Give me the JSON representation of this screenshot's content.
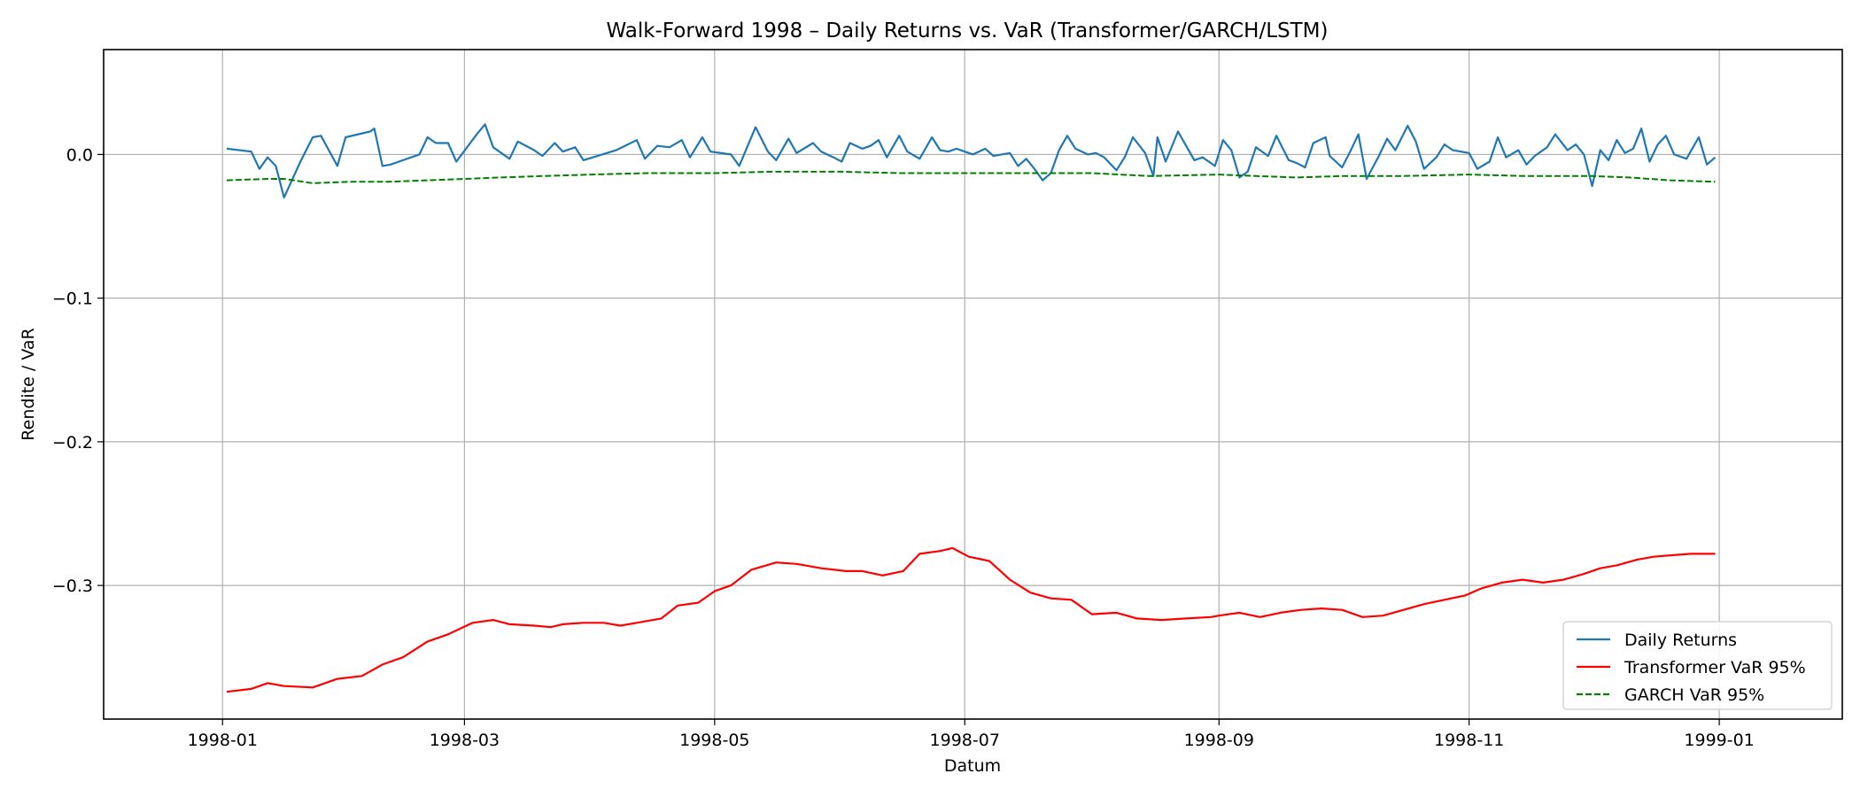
{
  "chart_data": {
    "type": "line",
    "title": "Walk-Forward 1998 – Daily Returns vs. VaR (Transformer/GARCH/LSTM)",
    "xlabel": "Datum",
    "ylabel": "Rendite / VaR",
    "x_type": "date",
    "xlim": [
      "1997-12-03",
      "1999-01-31"
    ],
    "ylim": [
      -0.393,
      0.073
    ],
    "x_ticks": [
      "1998-01",
      "1998-03",
      "1998-05",
      "1998-07",
      "1998-09",
      "1998-11",
      "1999-01"
    ],
    "y_ticks": [
      -0.3,
      -0.2,
      -0.1,
      0.0
    ],
    "y_tick_labels": [
      "−0.3",
      "−0.2",
      "−0.1",
      "0.0"
    ],
    "grid": true,
    "legend_position": "lower-right",
    "series": [
      {
        "name": "Daily Returns",
        "color": "#1f77b4",
        "style": "solid",
        "points": [
          [
            "1998-01-02",
            0.004
          ],
          [
            "1998-01-08",
            0.002
          ],
          [
            "1998-01-10",
            -0.01
          ],
          [
            "1998-01-12",
            -0.002
          ],
          [
            "1998-01-14",
            -0.008
          ],
          [
            "1998-01-16",
            -0.03
          ],
          [
            "1998-01-20",
            -0.005
          ],
          [
            "1998-01-23",
            0.012
          ],
          [
            "1998-01-25",
            0.013
          ],
          [
            "1998-01-29",
            -0.008
          ],
          [
            "1998-01-31",
            0.012
          ],
          [
            "1998-02-06",
            0.016
          ],
          [
            "1998-02-07",
            0.018
          ],
          [
            "1998-02-09",
            -0.008
          ],
          [
            "1998-02-11",
            -0.007
          ],
          [
            "1998-02-14",
            -0.004
          ],
          [
            "1998-02-18",
            0.0
          ],
          [
            "1998-02-20",
            0.012
          ],
          [
            "1998-02-22",
            0.008
          ],
          [
            "1998-02-25",
            0.008
          ],
          [
            "1998-02-27",
            -0.005
          ],
          [
            "1998-03-04",
            0.014
          ],
          [
            "1998-03-06",
            0.021
          ],
          [
            "1998-03-08",
            0.005
          ],
          [
            "1998-03-12",
            -0.003
          ],
          [
            "1998-03-14",
            0.009
          ],
          [
            "1998-03-18",
            0.003
          ],
          [
            "1998-03-20",
            -0.001
          ],
          [
            "1998-03-23",
            0.008
          ],
          [
            "1998-03-25",
            0.002
          ],
          [
            "1998-03-28",
            0.005
          ],
          [
            "1998-03-30",
            -0.004
          ],
          [
            "1998-04-07",
            0.003
          ],
          [
            "1998-04-12",
            0.01
          ],
          [
            "1998-04-14",
            -0.003
          ],
          [
            "1998-04-17",
            0.006
          ],
          [
            "1998-04-20",
            0.005
          ],
          [
            "1998-04-23",
            0.01
          ],
          [
            "1998-04-25",
            -0.002
          ],
          [
            "1998-04-28",
            0.012
          ],
          [
            "1998-04-30",
            0.002
          ],
          [
            "1998-05-05",
            0.0
          ],
          [
            "1998-05-07",
            -0.008
          ],
          [
            "1998-05-11",
            0.019
          ],
          [
            "1998-05-14",
            0.002
          ],
          [
            "1998-05-16",
            -0.004
          ],
          [
            "1998-05-19",
            0.011
          ],
          [
            "1998-05-21",
            0.001
          ],
          [
            "1998-05-25",
            0.008
          ],
          [
            "1998-05-27",
            0.002
          ],
          [
            "1998-05-30",
            -0.002
          ],
          [
            "1998-06-01",
            -0.005
          ],
          [
            "1998-06-03",
            0.008
          ],
          [
            "1998-06-06",
            0.004
          ],
          [
            "1998-06-08",
            0.006
          ],
          [
            "1998-06-10",
            0.01
          ],
          [
            "1998-06-12",
            -0.002
          ],
          [
            "1998-06-15",
            0.013
          ],
          [
            "1998-06-17",
            0.002
          ],
          [
            "1998-06-20",
            -0.003
          ],
          [
            "1998-06-23",
            0.012
          ],
          [
            "1998-06-25",
            0.003
          ],
          [
            "1998-06-27",
            0.002
          ],
          [
            "1998-06-29",
            0.004
          ],
          [
            "1998-07-03",
            0.0
          ],
          [
            "1998-07-06",
            0.004
          ],
          [
            "1998-07-08",
            -0.001
          ],
          [
            "1998-07-12",
            0.001
          ],
          [
            "1998-07-14",
            -0.008
          ],
          [
            "1998-07-16",
            -0.003
          ],
          [
            "1998-07-18",
            -0.01
          ],
          [
            "1998-07-20",
            -0.018
          ],
          [
            "1998-07-22",
            -0.013
          ],
          [
            "1998-07-24",
            0.003
          ],
          [
            "1998-07-26",
            0.013
          ],
          [
            "1998-07-28",
            0.004
          ],
          [
            "1998-07-31",
            0.0
          ],
          [
            "1998-08-02",
            0.001
          ],
          [
            "1998-08-04",
            -0.002
          ],
          [
            "1998-08-07",
            -0.011
          ],
          [
            "1998-08-09",
            -0.002
          ],
          [
            "1998-08-11",
            0.012
          ],
          [
            "1998-08-14",
            0.001
          ],
          [
            "1998-08-16",
            -0.015
          ],
          [
            "1998-08-17",
            0.012
          ],
          [
            "1998-08-19",
            -0.005
          ],
          [
            "1998-08-22",
            0.016
          ],
          [
            "1998-08-24",
            0.006
          ],
          [
            "1998-08-26",
            -0.004
          ],
          [
            "1998-08-28",
            -0.002
          ],
          [
            "1998-08-31",
            -0.008
          ],
          [
            "1998-09-02",
            0.01
          ],
          [
            "1998-09-04",
            0.003
          ],
          [
            "1998-09-06",
            -0.016
          ],
          [
            "1998-09-08",
            -0.012
          ],
          [
            "1998-09-10",
            0.005
          ],
          [
            "1998-09-13",
            -0.001
          ],
          [
            "1998-09-15",
            0.013
          ],
          [
            "1998-09-18",
            -0.004
          ],
          [
            "1998-09-20",
            -0.006
          ],
          [
            "1998-09-22",
            -0.009
          ],
          [
            "1998-09-24",
            0.008
          ],
          [
            "1998-09-27",
            0.012
          ],
          [
            "1998-09-28",
            -0.001
          ],
          [
            "1998-10-01",
            -0.009
          ],
          [
            "1998-10-03",
            0.002
          ],
          [
            "1998-10-05",
            0.014
          ],
          [
            "1998-10-07",
            -0.017
          ],
          [
            "1998-10-10",
            -0.001
          ],
          [
            "1998-10-12",
            0.011
          ],
          [
            "1998-10-14",
            0.003
          ],
          [
            "1998-10-17",
            0.02
          ],
          [
            "1998-10-19",
            0.009
          ],
          [
            "1998-10-21",
            -0.01
          ],
          [
            "1998-10-24",
            -0.002
          ],
          [
            "1998-10-26",
            0.007
          ],
          [
            "1998-10-28",
            0.003
          ],
          [
            "1998-11-01",
            0.001
          ],
          [
            "1998-11-03",
            -0.01
          ],
          [
            "1998-11-06",
            -0.005
          ],
          [
            "1998-11-08",
            0.012
          ],
          [
            "1998-11-10",
            -0.002
          ],
          [
            "1998-11-13",
            0.003
          ],
          [
            "1998-11-15",
            -0.007
          ],
          [
            "1998-11-17",
            -0.001
          ],
          [
            "1998-11-20",
            0.005
          ],
          [
            "1998-11-22",
            0.014
          ],
          [
            "1998-11-25",
            0.003
          ],
          [
            "1998-11-27",
            0.007
          ],
          [
            "1998-11-29",
            0.0
          ],
          [
            "1998-12-01",
            -0.022
          ],
          [
            "1998-12-03",
            0.003
          ],
          [
            "1998-12-05",
            -0.004
          ],
          [
            "1998-12-07",
            0.01
          ],
          [
            "1998-12-09",
            0.001
          ],
          [
            "1998-12-11",
            0.004
          ],
          [
            "1998-12-13",
            0.018
          ],
          [
            "1998-12-15",
            -0.005
          ],
          [
            "1998-12-17",
            0.007
          ],
          [
            "1998-12-19",
            0.013
          ],
          [
            "1998-12-21",
            0.0
          ],
          [
            "1998-12-24",
            -0.003
          ],
          [
            "1998-12-27",
            0.012
          ],
          [
            "1998-12-29",
            -0.007
          ],
          [
            "1998-12-31",
            -0.002
          ]
        ]
      },
      {
        "name": "Transformer VaR 95%",
        "color": "#ff0000",
        "style": "solid",
        "points": [
          [
            "1998-01-02",
            -0.374
          ],
          [
            "1998-01-08",
            -0.372
          ],
          [
            "1998-01-12",
            -0.368
          ],
          [
            "1998-01-16",
            -0.37
          ],
          [
            "1998-01-23",
            -0.371
          ],
          [
            "1998-01-29",
            -0.365
          ],
          [
            "1998-02-04",
            -0.363
          ],
          [
            "1998-02-09",
            -0.355
          ],
          [
            "1998-02-14",
            -0.35
          ],
          [
            "1998-02-20",
            -0.339
          ],
          [
            "1998-02-25",
            -0.334
          ],
          [
            "1998-03-03",
            -0.326
          ],
          [
            "1998-03-08",
            -0.324
          ],
          [
            "1998-03-12",
            -0.327
          ],
          [
            "1998-03-18",
            -0.328
          ],
          [
            "1998-03-22",
            -0.329
          ],
          [
            "1998-03-25",
            -0.327
          ],
          [
            "1998-03-30",
            -0.326
          ],
          [
            "1998-04-04",
            -0.326
          ],
          [
            "1998-04-08",
            -0.328
          ],
          [
            "1998-04-12",
            -0.326
          ],
          [
            "1998-04-18",
            -0.323
          ],
          [
            "1998-04-22",
            -0.314
          ],
          [
            "1998-04-27",
            -0.312
          ],
          [
            "1998-05-01",
            -0.304
          ],
          [
            "1998-05-05",
            -0.3
          ],
          [
            "1998-05-10",
            -0.289
          ],
          [
            "1998-05-16",
            -0.284
          ],
          [
            "1998-05-21",
            -0.285
          ],
          [
            "1998-05-27",
            -0.288
          ],
          [
            "1998-06-02",
            -0.29
          ],
          [
            "1998-06-06",
            -0.29
          ],
          [
            "1998-06-11",
            -0.293
          ],
          [
            "1998-06-16",
            -0.29
          ],
          [
            "1998-06-20",
            -0.278
          ],
          [
            "1998-06-25",
            -0.276
          ],
          [
            "1998-06-28",
            -0.274
          ],
          [
            "1998-07-02",
            -0.28
          ],
          [
            "1998-07-07",
            -0.283
          ],
          [
            "1998-07-12",
            -0.296
          ],
          [
            "1998-07-17",
            -0.305
          ],
          [
            "1998-07-22",
            -0.309
          ],
          [
            "1998-07-27",
            -0.31
          ],
          [
            "1998-08-01",
            -0.32
          ],
          [
            "1998-08-07",
            -0.319
          ],
          [
            "1998-08-12",
            -0.323
          ],
          [
            "1998-08-18",
            -0.324
          ],
          [
            "1998-08-24",
            -0.323
          ],
          [
            "1998-08-30",
            -0.322
          ],
          [
            "1998-09-01",
            -0.321
          ],
          [
            "1998-09-06",
            -0.319
          ],
          [
            "1998-09-11",
            -0.322
          ],
          [
            "1998-09-16",
            -0.319
          ],
          [
            "1998-09-21",
            -0.317
          ],
          [
            "1998-09-26",
            -0.316
          ],
          [
            "1998-10-01",
            -0.317
          ],
          [
            "1998-10-06",
            -0.322
          ],
          [
            "1998-10-11",
            -0.321
          ],
          [
            "1998-10-16",
            -0.317
          ],
          [
            "1998-10-21",
            -0.313
          ],
          [
            "1998-10-26",
            -0.31
          ],
          [
            "1998-10-31",
            -0.307
          ],
          [
            "1998-11-04",
            -0.302
          ],
          [
            "1998-11-09",
            -0.298
          ],
          [
            "1998-11-14",
            -0.296
          ],
          [
            "1998-11-19",
            -0.298
          ],
          [
            "1998-11-24",
            -0.296
          ],
          [
            "1998-11-29",
            -0.292
          ],
          [
            "1998-12-03",
            -0.288
          ],
          [
            "1998-12-07",
            -0.286
          ],
          [
            "1998-12-12",
            -0.282
          ],
          [
            "1998-12-16",
            -0.28
          ],
          [
            "1998-12-20",
            -0.279
          ],
          [
            "1998-12-25",
            -0.278
          ],
          [
            "1998-12-31",
            -0.278
          ]
        ]
      },
      {
        "name": "GARCH VaR 95%",
        "color": "#008000",
        "style": "dashed",
        "points": [
          [
            "1998-01-02",
            -0.018
          ],
          [
            "1998-01-12",
            -0.017
          ],
          [
            "1998-01-16",
            -0.017
          ],
          [
            "1998-01-23",
            -0.02
          ],
          [
            "1998-02-01",
            -0.019
          ],
          [
            "1998-02-10",
            -0.019
          ],
          [
            "1998-02-20",
            -0.018
          ],
          [
            "1998-03-01",
            -0.017
          ],
          [
            "1998-03-10",
            -0.016
          ],
          [
            "1998-03-20",
            -0.015
          ],
          [
            "1998-04-01",
            -0.014
          ],
          [
            "1998-04-15",
            -0.013
          ],
          [
            "1998-05-01",
            -0.013
          ],
          [
            "1998-05-15",
            -0.012
          ],
          [
            "1998-06-01",
            -0.012
          ],
          [
            "1998-06-15",
            -0.013
          ],
          [
            "1998-07-01",
            -0.013
          ],
          [
            "1998-07-15",
            -0.013
          ],
          [
            "1998-08-01",
            -0.013
          ],
          [
            "1998-08-15",
            -0.015
          ],
          [
            "1998-09-01",
            -0.014
          ],
          [
            "1998-09-10",
            -0.015
          ],
          [
            "1998-09-20",
            -0.016
          ],
          [
            "1998-10-01",
            -0.015
          ],
          [
            "1998-10-15",
            -0.015
          ],
          [
            "1998-11-01",
            -0.014
          ],
          [
            "1998-11-15",
            -0.015
          ],
          [
            "1998-12-01",
            -0.015
          ],
          [
            "1998-12-10",
            -0.016
          ],
          [
            "1998-12-20",
            -0.018
          ],
          [
            "1998-12-31",
            -0.019
          ]
        ]
      }
    ]
  }
}
